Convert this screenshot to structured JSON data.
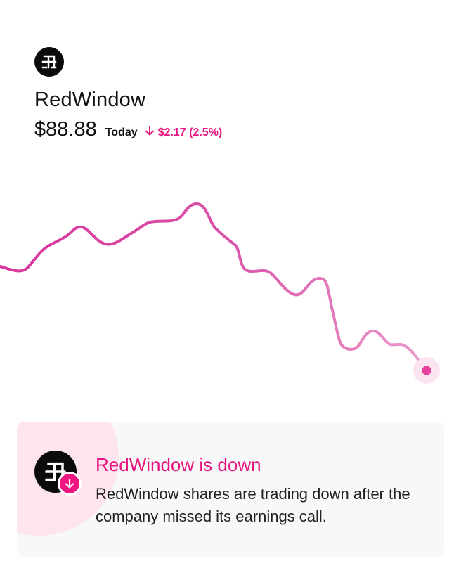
{
  "stock": {
    "name": "RedWindow",
    "price": "$88.88",
    "period_label": "Today",
    "change_text": "$2.17 (2.5%)",
    "direction": "down"
  },
  "chart": {
    "type": "line",
    "stroke_start_color": "#d9359c",
    "stroke_end_color": "#e98ac4",
    "point_color": "#e8419d",
    "halo_color": "#fbe3ef"
  },
  "alert": {
    "title": "RedWindow is down",
    "message": "RedWindow shares are trading down after the company missed its earnings call.",
    "accent_color": "#e6157f",
    "badge_icon": "arrow-down-icon"
  },
  "icons": {
    "logo": "redwindow-logo",
    "change": "arrow-down-icon"
  }
}
